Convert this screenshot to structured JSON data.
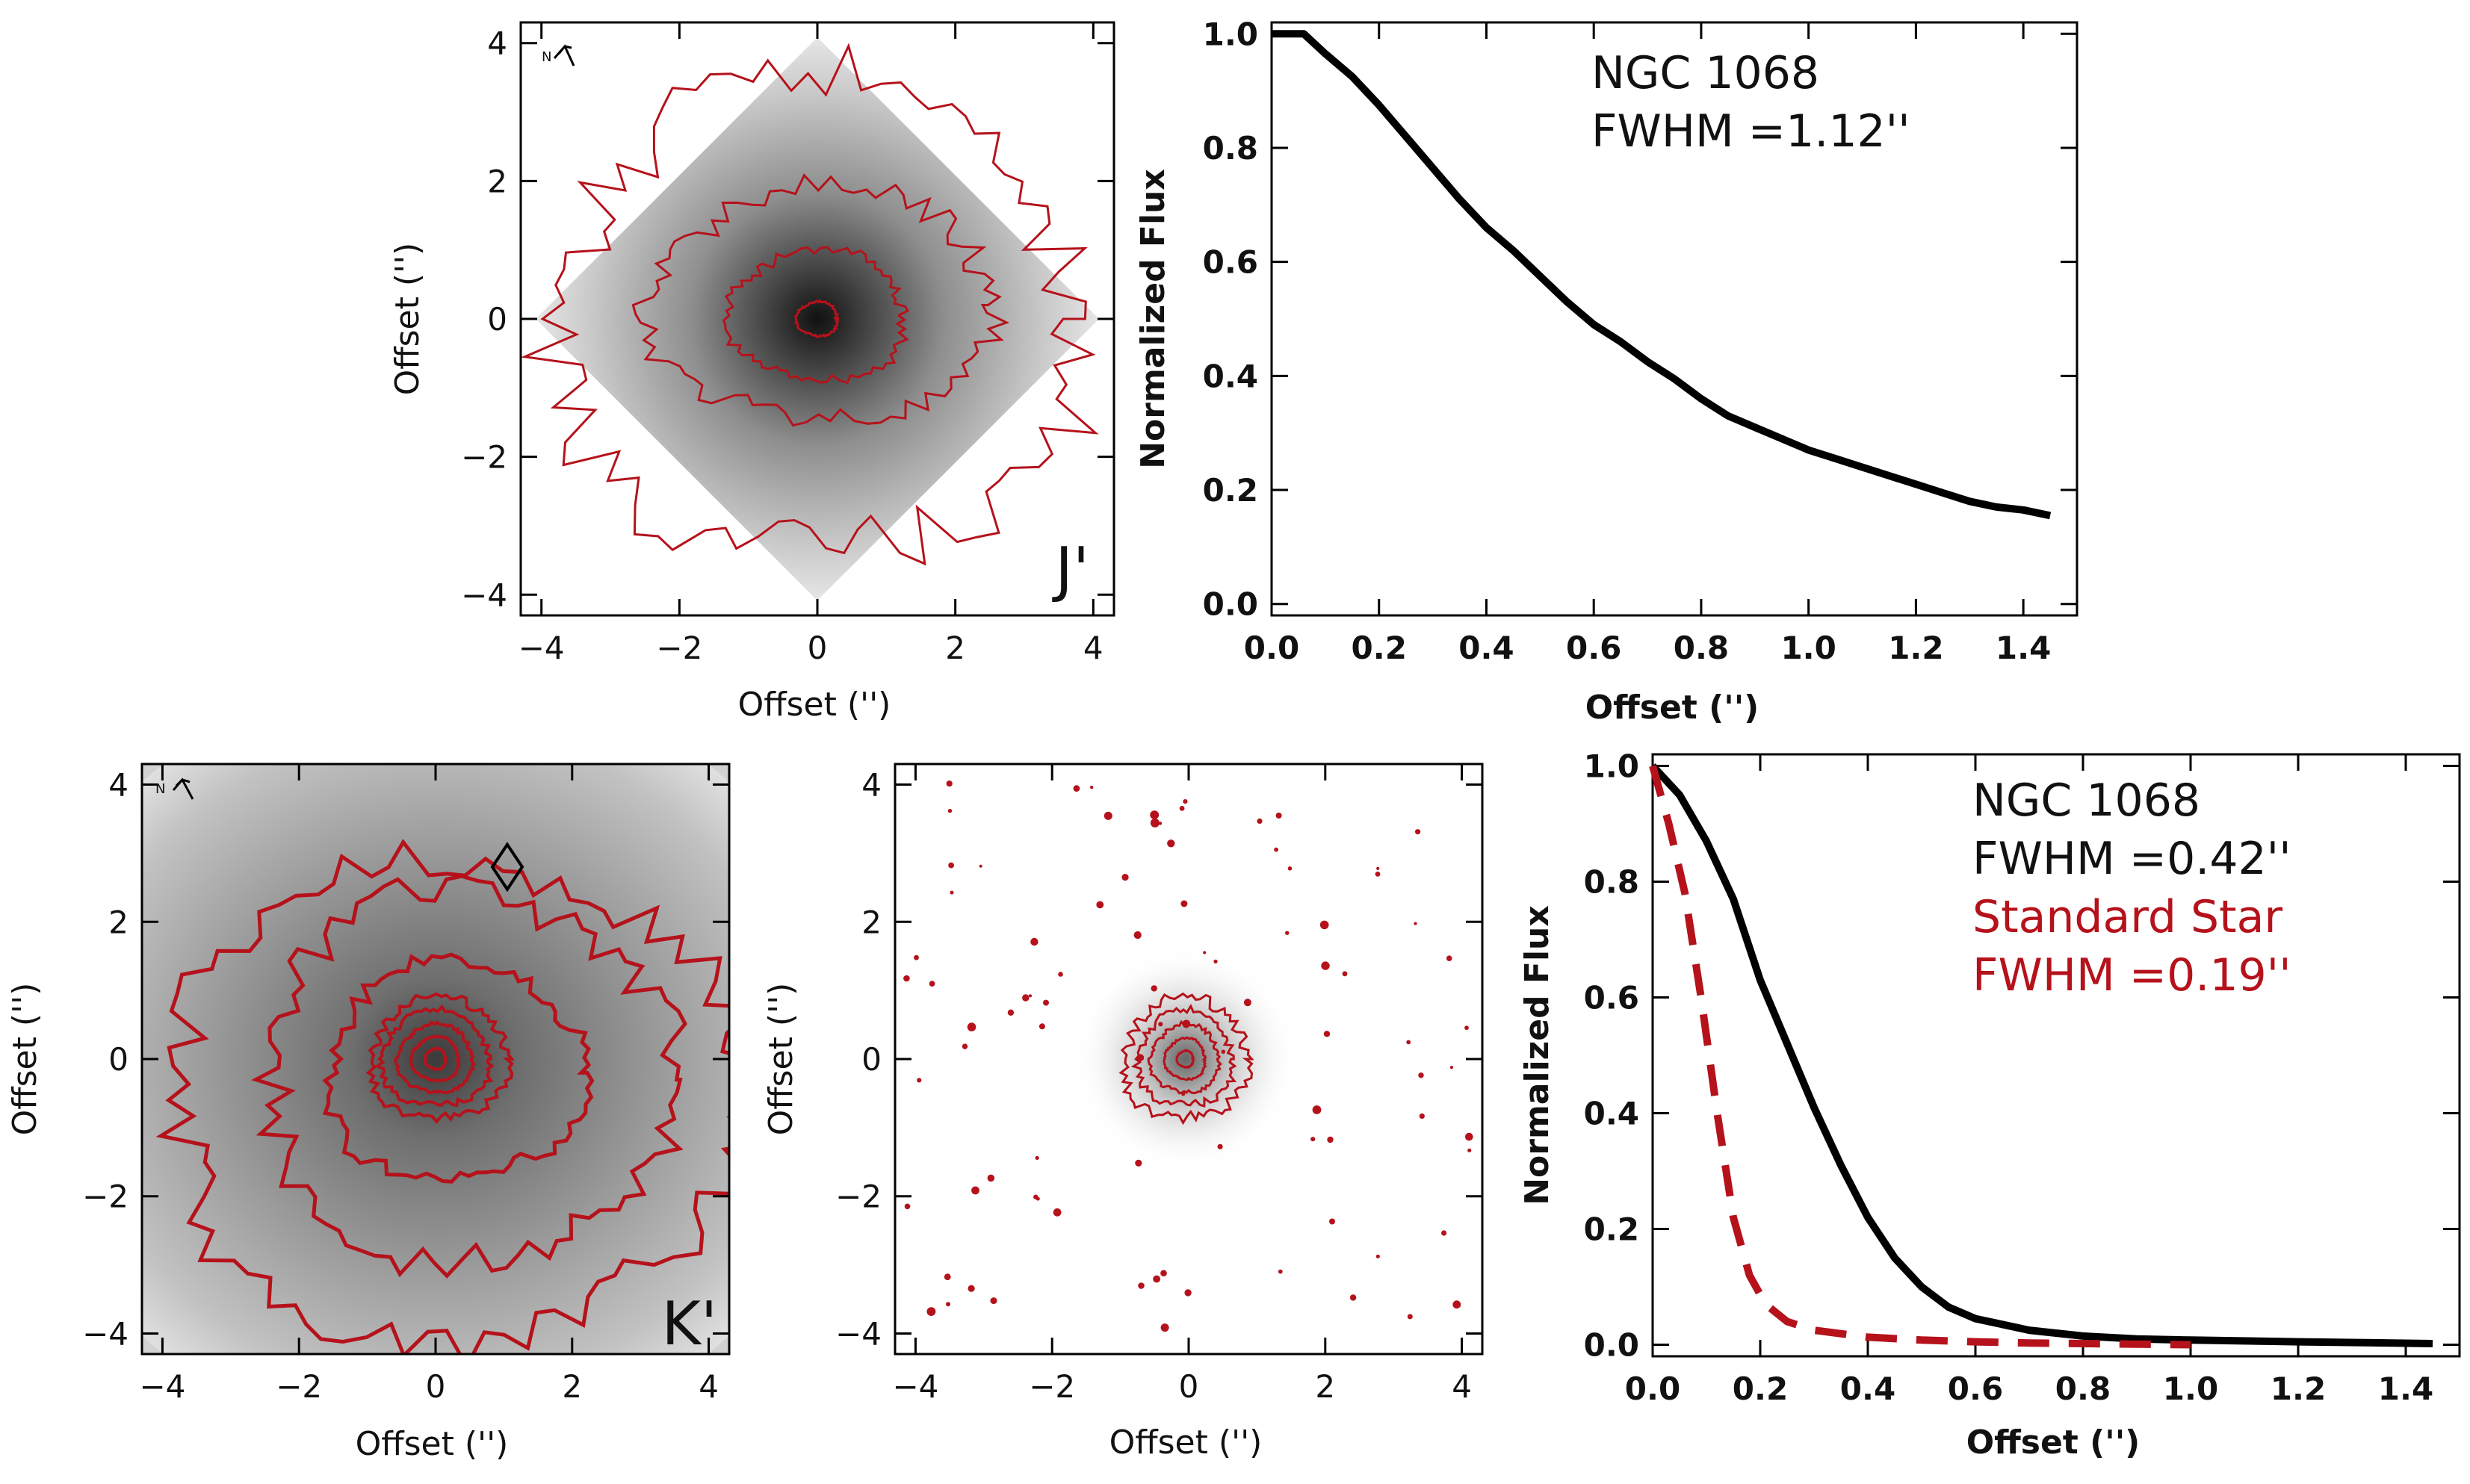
{
  "colors": {
    "contour": "#b5121b",
    "profile": "#000000",
    "standard": "#b5121b"
  },
  "chart_data": [
    {
      "type": "heatmap",
      "panel": "J' image",
      "band_label": "J'",
      "compass": "N",
      "xlabel": "Offset ('')",
      "ylabel": "Offset ('')",
      "xlim": [
        -4.3,
        4.3
      ],
      "ylim": [
        -4.3,
        4.3
      ],
      "xticks": [
        -4,
        -2,
        0,
        2,
        4
      ],
      "yticks": [
        -4,
        -2,
        0,
        2,
        4
      ],
      "xticklabels": [
        "−4",
        "−2",
        "0",
        "2",
        "4"
      ],
      "yticklabels": [
        "−4",
        "−2",
        "0",
        "2",
        "4"
      ],
      "contours": [
        {
          "cx": 0.0,
          "cy": 0.0,
          "rx": 0.3,
          "ry": 0.25
        },
        {
          "cx": 0.0,
          "cy": 0.05,
          "rx": 1.3,
          "ry": 0.95
        },
        {
          "cx": 0.1,
          "cy": 0.2,
          "rx": 2.5,
          "ry": 1.7
        },
        {
          "cx": 0.0,
          "cy": 0.0,
          "rx": 3.8,
          "ry": 3.5
        }
      ]
    },
    {
      "type": "line",
      "panel": "J' radial profile",
      "xlabel": "Offset ('')",
      "ylabel": "Normalized Flux",
      "xlim": [
        0.0,
        1.5
      ],
      "ylim": [
        -0.02,
        1.02
      ],
      "xticks": [
        0.0,
        0.2,
        0.4,
        0.6,
        0.8,
        1.0,
        1.2,
        1.4
      ],
      "xticklabels": [
        "0.0",
        "0.2",
        "0.4",
        "0.6",
        "0.8",
        "1.0",
        "1.2",
        "1.4"
      ],
      "yticks": [
        0.0,
        0.2,
        0.4,
        0.6,
        0.8,
        1.0
      ],
      "yticklabels": [
        "0.0",
        "0.2",
        "0.4",
        "0.6",
        "0.8",
        "1.0"
      ],
      "annotations": [
        "NGC 1068",
        "FWHM =1.12''"
      ],
      "series": [
        {
          "color": "#000000",
          "dash": "solid",
          "x": [
            0.0,
            0.06,
            0.1,
            0.15,
            0.2,
            0.25,
            0.3,
            0.35,
            0.4,
            0.45,
            0.5,
            0.55,
            0.6,
            0.65,
            0.7,
            0.75,
            0.8,
            0.85,
            0.9,
            0.95,
            1.0,
            1.05,
            1.1,
            1.15,
            1.2,
            1.25,
            1.3,
            1.35,
            1.4,
            1.45
          ],
          "y": [
            1.0,
            1.0,
            0.965,
            0.925,
            0.875,
            0.82,
            0.765,
            0.71,
            0.66,
            0.62,
            0.575,
            0.53,
            0.49,
            0.46,
            0.425,
            0.395,
            0.36,
            0.33,
            0.31,
            0.29,
            0.27,
            0.255,
            0.24,
            0.225,
            0.21,
            0.195,
            0.18,
            0.17,
            0.165,
            0.155
          ]
        }
      ]
    },
    {
      "type": "heatmap",
      "panel": "K' image",
      "band_label": "K'",
      "compass": "N",
      "xlabel": "Offset ('')",
      "ylabel": "Offset ('')",
      "xlim": [
        -4.3,
        4.3
      ],
      "ylim": [
        -4.3,
        4.3
      ],
      "xticks": [
        -4,
        -2,
        0,
        2,
        4
      ],
      "yticks": [
        -4,
        -2,
        0,
        2,
        4
      ],
      "xticklabels": [
        "−4",
        "−2",
        "0",
        "2",
        "4"
      ],
      "yticklabels": [
        "−4",
        "−2",
        "0",
        "2",
        "4"
      ],
      "marker": {
        "shape": "diamond",
        "x": 1.05,
        "y": 2.8
      },
      "contours": [
        {
          "cx": 0.0,
          "cy": 0.0,
          "rx": 0.15,
          "ry": 0.15
        },
        {
          "cx": 0.0,
          "cy": 0.0,
          "rx": 0.35,
          "ry": 0.32
        },
        {
          "cx": 0.0,
          "cy": 0.0,
          "rx": 0.55,
          "ry": 0.5
        },
        {
          "cx": 0.0,
          "cy": 0.0,
          "rx": 0.8,
          "ry": 0.7
        },
        {
          "cx": 0.05,
          "cy": 0.0,
          "rx": 1.0,
          "ry": 0.9
        },
        {
          "cx": 0.3,
          "cy": -0.2,
          "rx": 1.9,
          "ry": 1.6
        },
        {
          "cx": 0.5,
          "cy": -0.3,
          "rx": 3.0,
          "ry": 2.7
        },
        {
          "cx": 0.3,
          "cy": -0.6,
          "rx": 4.2,
          "ry": 3.6
        }
      ]
    },
    {
      "type": "heatmap",
      "panel": "K' standard star image",
      "xlabel": "Offset ('')",
      "ylabel": "Offset ('')",
      "xlim": [
        -4.3,
        4.3
      ],
      "ylim": [
        -4.3,
        4.3
      ],
      "xticks": [
        -4,
        -2,
        0,
        2,
        4
      ],
      "yticks": [
        -4,
        -2,
        0,
        2,
        4
      ],
      "xticklabels": [
        "−4",
        "−2",
        "0",
        "2",
        "4"
      ],
      "yticklabels": [
        "−4",
        "−2",
        "0",
        "2",
        "4"
      ],
      "contours": [
        {
          "cx": -0.05,
          "cy": 0.0,
          "rx": 0.12,
          "ry": 0.12
        },
        {
          "cx": -0.05,
          "cy": 0.0,
          "rx": 0.3,
          "ry": 0.3
        },
        {
          "cx": -0.05,
          "cy": 0.0,
          "rx": 0.5,
          "ry": 0.5
        },
        {
          "cx": -0.05,
          "cy": 0.0,
          "rx": 0.7,
          "ry": 0.7
        },
        {
          "cx": -0.05,
          "cy": 0.0,
          "rx": 0.9,
          "ry": 0.9
        }
      ]
    },
    {
      "type": "line",
      "panel": "K' radial profile",
      "xlabel": "Offset ('')",
      "ylabel": "Normalized Flux",
      "xlim": [
        0.0,
        1.5
      ],
      "ylim": [
        -0.02,
        1.02
      ],
      "xticks": [
        0.0,
        0.2,
        0.4,
        0.6,
        0.8,
        1.0,
        1.2,
        1.4
      ],
      "xticklabels": [
        "0.0",
        "0.2",
        "0.4",
        "0.6",
        "0.8",
        "1.0",
        "1.2",
        "1.4"
      ],
      "yticks": [
        0.0,
        0.2,
        0.4,
        0.6,
        0.8,
        1.0
      ],
      "yticklabels": [
        "0.0",
        "0.2",
        "0.4",
        "0.6",
        "0.8",
        "1.0"
      ],
      "annotations": [
        "NGC 1068",
        "FWHM =0.42''",
        "Standard Star",
        "FWHM =0.19''"
      ],
      "series": [
        {
          "color": "#000000",
          "dash": "solid",
          "x": [
            0.0,
            0.05,
            0.1,
            0.15,
            0.2,
            0.25,
            0.3,
            0.35,
            0.4,
            0.45,
            0.5,
            0.55,
            0.6,
            0.7,
            0.8,
            0.9,
            1.0,
            1.2,
            1.45
          ],
          "y": [
            1.0,
            0.95,
            0.87,
            0.77,
            0.63,
            0.52,
            0.41,
            0.31,
            0.22,
            0.15,
            0.1,
            0.065,
            0.045,
            0.025,
            0.015,
            0.01,
            0.008,
            0.005,
            0.002
          ]
        },
        {
          "color": "#b5121b",
          "dash": "dashed",
          "x": [
            0.0,
            0.03,
            0.06,
            0.09,
            0.12,
            0.15,
            0.18,
            0.21,
            0.25,
            0.3,
            0.4,
            0.5,
            0.6,
            0.7,
            0.8,
            0.9,
            1.0
          ],
          "y": [
            1.0,
            0.9,
            0.78,
            0.6,
            0.4,
            0.22,
            0.12,
            0.07,
            0.04,
            0.025,
            0.013,
            0.008,
            0.005,
            0.003,
            0.002,
            0.001,
            0.0
          ]
        }
      ]
    }
  ]
}
